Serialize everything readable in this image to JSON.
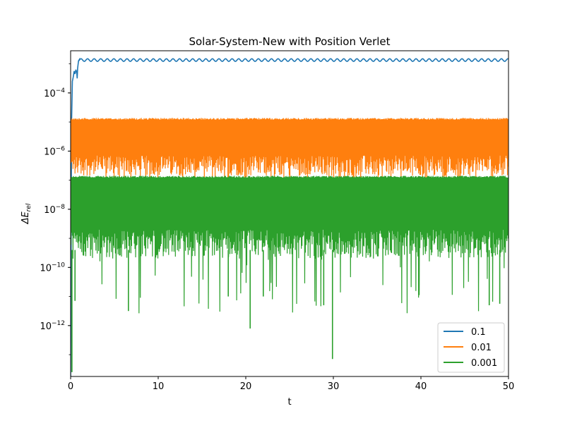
{
  "chart_data": {
    "type": "line",
    "title": "Solar-System-New with Position Verlet",
    "xlabel": "t",
    "ylabel": "ΔE_rel",
    "ylabel_main": "ΔE",
    "ylabel_sub": "rel",
    "xlim": [
      0,
      50
    ],
    "ylim_log10": [
      -13.75,
      -2.55
    ],
    "yscale": "log",
    "grid": false,
    "legend_position": "lower-right",
    "x_ticks": [
      {
        "value": 0,
        "label": "0"
      },
      {
        "value": 10,
        "label": "10"
      },
      {
        "value": 20,
        "label": "20"
      },
      {
        "value": 30,
        "label": "30"
      },
      {
        "value": 40,
        "label": "40"
      },
      {
        "value": 50,
        "label": "50"
      }
    ],
    "y_ticks": [
      {
        "exp": -4,
        "base": "10",
        "sup": "−4"
      },
      {
        "exp": -6,
        "base": "10",
        "sup": "−6"
      },
      {
        "exp": -8,
        "base": "10",
        "sup": "−8"
      },
      {
        "exp": -10,
        "base": "10",
        "sup": "−10"
      },
      {
        "exp": -12,
        "base": "10",
        "sup": "−12"
      }
    ],
    "series": [
      {
        "name": "0.1",
        "color": "#1f77b4",
        "kind": "oscillating",
        "initial_points": [
          [
            0.0,
            -13.75
          ],
          [
            0.1,
            -5.1
          ],
          [
            0.2,
            -3.6
          ],
          [
            0.3,
            -3.45
          ],
          [
            0.4,
            -3.25
          ],
          [
            0.5,
            -3.35
          ],
          [
            0.6,
            -3.2
          ],
          [
            0.7,
            -3.3
          ],
          [
            0.75,
            -3.5
          ],
          [
            0.8,
            -3.15
          ],
          [
            0.9,
            -2.9
          ],
          [
            1.0,
            -2.85
          ]
        ],
        "t_start": 1.0,
        "center_log10": -2.87,
        "amplitude_log10": 0.045,
        "period": 0.75
      },
      {
        "name": "0.01",
        "color": "#ff7f0e",
        "kind": "band",
        "top_log10": -4.86,
        "bottom_log10": -6.85,
        "dip_min_log10": -7.3
      },
      {
        "name": "0.001",
        "color": "#2ca02c",
        "kind": "band",
        "top_log10": -6.85,
        "bottom_log10": -9.7,
        "dip_min_log10": -11.6,
        "deep_dips": [
          {
            "x": 0.15,
            "log10": -13.6
          },
          {
            "x": 6.6,
            "log10": -11.5
          },
          {
            "x": 20.5,
            "log10": -12.1
          },
          {
            "x": 29.9,
            "log10": -13.15
          },
          {
            "x": 28.9,
            "log10": -11.3
          },
          {
            "x": 47.8,
            "log10": -11.3
          },
          {
            "x": 49.0,
            "log10": -11.25
          },
          {
            "x": 0.5,
            "log10": -11.15
          },
          {
            "x": 18.0,
            "log10": -11.0
          },
          {
            "x": 22.0,
            "log10": -11.0
          }
        ]
      }
    ]
  }
}
